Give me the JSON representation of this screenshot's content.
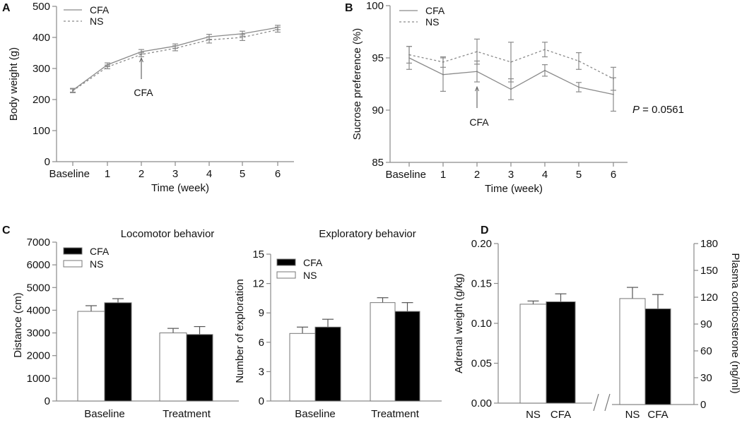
{
  "chart_data": [
    {
      "panel": "A",
      "type": "line",
      "title": "",
      "xlabel": "Time (week)",
      "ylabel": "Body weight (g)",
      "categories": [
        "Baseline",
        "1",
        "2",
        "3",
        "4",
        "5",
        "6"
      ],
      "ylim": [
        0,
        500
      ],
      "yticks": [
        "0",
        "100",
        "200",
        "300",
        "400",
        "500"
      ],
      "annotation": "CFA",
      "annotation_at": "2",
      "legend": [
        "CFA",
        "NS"
      ],
      "legend_position": "top-left",
      "series": [
        {
          "name": "CFA",
          "style": "solid",
          "values": [
            230,
            312,
            354,
            372,
            402,
            412,
            432
          ],
          "errors": [
            6,
            6,
            7,
            7,
            8,
            8,
            7
          ]
        },
        {
          "name": "NS",
          "style": "dashed",
          "values": [
            228,
            305,
            345,
            365,
            392,
            400,
            425
          ],
          "errors": [
            6,
            6,
            7,
            8,
            10,
            10,
            8
          ]
        }
      ]
    },
    {
      "panel": "B",
      "type": "line",
      "title": "",
      "xlabel": "Time (week)",
      "ylabel": "Sucrose preference (%)",
      "categories": [
        "Baseline",
        "1",
        "2",
        "3",
        "4",
        "5",
        "6"
      ],
      "ylim": [
        85,
        100
      ],
      "yticks": [
        "85",
        "90",
        "95",
        "100"
      ],
      "annotation": "CFA",
      "annotation_at": "2",
      "p_prefix": "P",
      "p_value": " = 0.0561",
      "legend": [
        "CFA",
        "NS"
      ],
      "legend_position": "top-left",
      "series": [
        {
          "name": "CFA",
          "style": "solid",
          "values": [
            95.0,
            93.4,
            93.7,
            92.0,
            93.8,
            92.2,
            91.5
          ],
          "errors": [
            1.1,
            1.6,
            1.0,
            1.0,
            0.55,
            0.45,
            1.6
          ]
        },
        {
          "name": "NS",
          "style": "dashed",
          "values": [
            95.3,
            94.6,
            95.6,
            94.6,
            95.8,
            94.7,
            93.0
          ],
          "errors": [
            0.8,
            0.5,
            1.2,
            1.9,
            0.7,
            0.8,
            1.1
          ]
        }
      ]
    },
    {
      "panel": "C",
      "type": "bar",
      "title": "Locomotor behavior",
      "xlabel": "",
      "ylabel": "Distance (cm)",
      "categories": [
        "Baseline",
        "Treatment"
      ],
      "ylim": [
        0,
        7000
      ],
      "yticks": [
        "0",
        "1000",
        "2000",
        "3000",
        "4000",
        "5000",
        "6000",
        "7000"
      ],
      "legend": [
        "CFA",
        "NS"
      ],
      "legend_position": "top-left",
      "series": [
        {
          "name": "NS",
          "color": "#ffffff",
          "values": [
            3950,
            3000
          ],
          "errors": [
            250,
            200
          ]
        },
        {
          "name": "CFA",
          "color": "#000000",
          "values": [
            4330,
            2930
          ],
          "errors": [
            180,
            350
          ]
        }
      ]
    },
    {
      "panel": "",
      "type": "bar",
      "title": "Exploratory behavior",
      "xlabel": "",
      "ylabel": "Number of exploration",
      "categories": [
        "Baseline",
        "Treatment"
      ],
      "ylim": [
        0,
        15
      ],
      "yticks": [
        "0",
        "3",
        "6",
        "9",
        "12",
        "15"
      ],
      "legend": [
        "CFA",
        "NS"
      ],
      "legend_position": "top-left",
      "series": [
        {
          "name": "NS",
          "color": "#ffffff",
          "values": [
            6.9,
            10.05
          ],
          "errors": [
            0.65,
            0.5
          ]
        },
        {
          "name": "CFA",
          "color": "#000000",
          "values": [
            7.55,
            9.15
          ],
          "errors": [
            0.8,
            0.9
          ]
        }
      ]
    },
    {
      "panel": "D",
      "type": "bar",
      "title": "",
      "groups": [
        {
          "ylabel": "Adrenal weight (g/kg)",
          "axis": "left",
          "ylim": [
            0,
            0.2
          ],
          "yticks": [
            "0.00",
            "0.05",
            "0.10",
            "0.15",
            "0.20"
          ],
          "categories": [
            "NS",
            "CFA"
          ],
          "colors": [
            "#ffffff",
            "#000000"
          ],
          "values": [
            0.124,
            0.127
          ],
          "errors": [
            0.004,
            0.01
          ]
        },
        {
          "ylabel": "Plasma corticosterone (ng/ml)",
          "axis": "right",
          "ylim": [
            0,
            180
          ],
          "yticks": [
            "0",
            "30",
            "60",
            "90",
            "120",
            "150",
            "180"
          ],
          "categories": [
            "NS",
            "CFA"
          ],
          "colors": [
            "#ffffff",
            "#000000"
          ],
          "values": [
            118.5,
            107
          ],
          "errors": [
            12.5,
            16
          ]
        }
      ]
    }
  ]
}
